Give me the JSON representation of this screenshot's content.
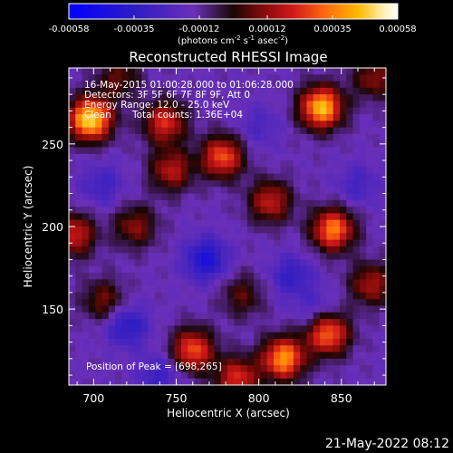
{
  "chart_data": {
    "type": "heatmap",
    "title": "Reconstructed RHESSI Image",
    "xlabel": "Heliocentric X (arcsec)",
    "ylabel": "Heliocentric Y (arcsec)",
    "xlim": [
      685,
      877
    ],
    "ylim": [
      104,
      296
    ],
    "xticks": [
      700,
      750,
      800,
      850
    ],
    "yticks": [
      150,
      200,
      250
    ],
    "colorbar": {
      "range": [
        -0.00058,
        0.00058
      ],
      "ticks": [
        "-0.00058",
        "-0.00035",
        "-0.00012",
        "0.00012",
        "0.00035",
        "0.00058"
      ],
      "tick_values": [
        -0.00058,
        -0.00035,
        -0.00012,
        0.00012,
        0.00035,
        0.00058
      ],
      "unit_prefix": "(photons cm",
      "unit_sup1": "-2",
      "unit_mid": " s",
      "unit_sup2": "-1",
      "unit_mid2": " asec",
      "unit_sup3": "-2",
      "unit_suffix": ")"
    },
    "annotations": {
      "time_range": "16-May-2015 01:00:28.000 to 01:06:28.000",
      "detectors": "Detectors: 3F 5F 6F 7F 8F 9F, Att 0",
      "energy": "Energy Range: 12.0 - 25.0 keV",
      "method": "Clean",
      "counts": "Total counts: 1.36E+04",
      "peak": "Position of Peak = [698,265]"
    },
    "peak": [
      698,
      265
    ],
    "sources": [
      {
        "x": 698,
        "y": 265,
        "value": 0.00058
      },
      {
        "x": 838,
        "y": 272,
        "value": 0.00052
      },
      {
        "x": 778,
        "y": 242,
        "value": 0.00036
      },
      {
        "x": 743,
        "y": 263,
        "value": 0.0003
      },
      {
        "x": 807,
        "y": 215,
        "value": 0.00026
      },
      {
        "x": 747,
        "y": 234,
        "value": 0.00024
      },
      {
        "x": 845,
        "y": 198,
        "value": 0.00042
      },
      {
        "x": 725,
        "y": 200,
        "value": 0.00018
      },
      {
        "x": 688,
        "y": 195,
        "value": 0.00028
      },
      {
        "x": 706,
        "y": 155,
        "value": 0.00016
      },
      {
        "x": 842,
        "y": 135,
        "value": 0.0004
      },
      {
        "x": 815,
        "y": 120,
        "value": 0.00046
      },
      {
        "x": 760,
        "y": 125,
        "value": 0.00036
      },
      {
        "x": 787,
        "y": 108,
        "value": 0.0003
      },
      {
        "x": 868,
        "y": 165,
        "value": 0.00022
      },
      {
        "x": 870,
        "y": 290,
        "value": 0.00018
      },
      {
        "x": 715,
        "y": 290,
        "value": 0.00014
      },
      {
        "x": 790,
        "y": 158,
        "value": 0.00012
      },
      {
        "x": 720,
        "y": 140,
        "value": -0.0003
      },
      {
        "x": 768,
        "y": 180,
        "value": -0.00036
      },
      {
        "x": 820,
        "y": 170,
        "value": -0.00026
      },
      {
        "x": 740,
        "y": 110,
        "value": -0.00024
      },
      {
        "x": 860,
        "y": 225,
        "value": -0.0002
      },
      {
        "x": 705,
        "y": 225,
        "value": -0.00022
      },
      {
        "x": 800,
        "y": 260,
        "value": -0.00018
      },
      {
        "x": 835,
        "y": 150,
        "value": -0.00018
      }
    ]
  },
  "footer": {
    "date": "21-May-2022 08:12"
  }
}
